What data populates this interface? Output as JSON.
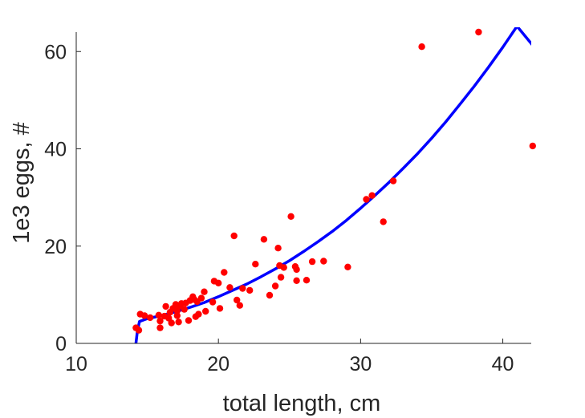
{
  "chart_data": {
    "type": "scatter",
    "title": "",
    "xlabel": "total length, cm",
    "ylabel": "1e3 eggs, #",
    "xlim": [
      10,
      42
    ],
    "ylim": [
      0,
      64
    ],
    "xticks": [
      10,
      20,
      30,
      40
    ],
    "yticks": [
      0,
      20,
      40,
      60
    ],
    "xtick_labels": [
      "10",
      "20",
      "30",
      "40"
    ],
    "ytick_labels": [
      "0",
      "20",
      "40",
      "60"
    ],
    "grid": false,
    "legend": "none",
    "series": [
      {
        "kind": "scatter",
        "color": "#ff0000",
        "points": [
          [
            14.2,
            3.2
          ],
          [
            14.4,
            2.7
          ],
          [
            14.5,
            6.0
          ],
          [
            14.8,
            5.7
          ],
          [
            15.2,
            5.3
          ],
          [
            15.8,
            5.8
          ],
          [
            15.9,
            4.6
          ],
          [
            15.9,
            3.2
          ],
          [
            16.2,
            5.6
          ],
          [
            16.3,
            7.6
          ],
          [
            16.5,
            5.2
          ],
          [
            16.6,
            6.4
          ],
          [
            16.7,
            4.2
          ],
          [
            16.8,
            7.2
          ],
          [
            17.0,
            8.0
          ],
          [
            17.1,
            5.7
          ],
          [
            17.1,
            6.7
          ],
          [
            17.2,
            4.4
          ],
          [
            17.3,
            7.7
          ],
          [
            17.4,
            8.2
          ],
          [
            17.6,
            7.0
          ],
          [
            17.7,
            8.3
          ],
          [
            17.9,
            4.7
          ],
          [
            18.0,
            8.8
          ],
          [
            18.2,
            9.6
          ],
          [
            18.3,
            9.0
          ],
          [
            18.4,
            5.5
          ],
          [
            18.5,
            8.6
          ],
          [
            18.6,
            6.0
          ],
          [
            18.8,
            9.3
          ],
          [
            19.0,
            10.6
          ],
          [
            19.1,
            6.6
          ],
          [
            19.6,
            8.5
          ],
          [
            19.7,
            12.8
          ],
          [
            20.0,
            12.4
          ],
          [
            20.1,
            7.2
          ],
          [
            20.4,
            14.6
          ],
          [
            20.8,
            11.5
          ],
          [
            21.1,
            22.1
          ],
          [
            21.3,
            8.9
          ],
          [
            21.5,
            7.8
          ],
          [
            21.7,
            11.3
          ],
          [
            22.2,
            10.9
          ],
          [
            22.6,
            16.3
          ],
          [
            23.2,
            21.4
          ],
          [
            23.6,
            9.9
          ],
          [
            24.0,
            11.8
          ],
          [
            24.2,
            19.6
          ],
          [
            24.3,
            16.0
          ],
          [
            24.4,
            13.6
          ],
          [
            24.6,
            15.6
          ],
          [
            25.1,
            26.1
          ],
          [
            25.4,
            15.8
          ],
          [
            25.5,
            12.9
          ],
          [
            25.5,
            15.2
          ],
          [
            26.2,
            13.0
          ],
          [
            26.6,
            16.8
          ],
          [
            27.4,
            16.9
          ],
          [
            29.1,
            15.7
          ],
          [
            30.4,
            29.6
          ],
          [
            30.8,
            30.4
          ],
          [
            31.6,
            25.0
          ],
          [
            32.3,
            33.4
          ],
          [
            34.3,
            61.0
          ],
          [
            38.3,
            64.0
          ],
          [
            42.1,
            40.6
          ]
        ]
      },
      {
        "kind": "line",
        "color": "#0000ff",
        "points": [
          [
            14.2,
            0
          ],
          [
            14.3,
            2.5
          ],
          [
            14.45,
            4.5
          ],
          [
            15,
            5.1
          ],
          [
            16,
            5.7
          ],
          [
            17,
            6.5
          ],
          [
            18,
            7.4
          ],
          [
            19,
            8.4
          ],
          [
            20,
            9.6
          ],
          [
            21,
            10.9
          ],
          [
            22,
            12.2
          ],
          [
            23,
            13.7
          ],
          [
            24,
            15.3
          ],
          [
            25,
            17.0
          ],
          [
            26,
            18.9
          ],
          [
            27,
            20.9
          ],
          [
            28,
            23.0
          ],
          [
            29,
            25.3
          ],
          [
            30,
            27.8
          ],
          [
            31,
            30.4
          ],
          [
            32,
            33.1
          ],
          [
            33,
            36.0
          ],
          [
            34,
            39.0
          ],
          [
            35,
            42.2
          ],
          [
            36,
            45.6
          ],
          [
            37,
            49.2
          ],
          [
            38,
            52.9
          ],
          [
            39,
            56.8
          ],
          [
            40,
            60.9
          ],
          [
            41,
            65.2
          ],
          [
            42.1,
            61.3
          ]
        ]
      }
    ]
  }
}
